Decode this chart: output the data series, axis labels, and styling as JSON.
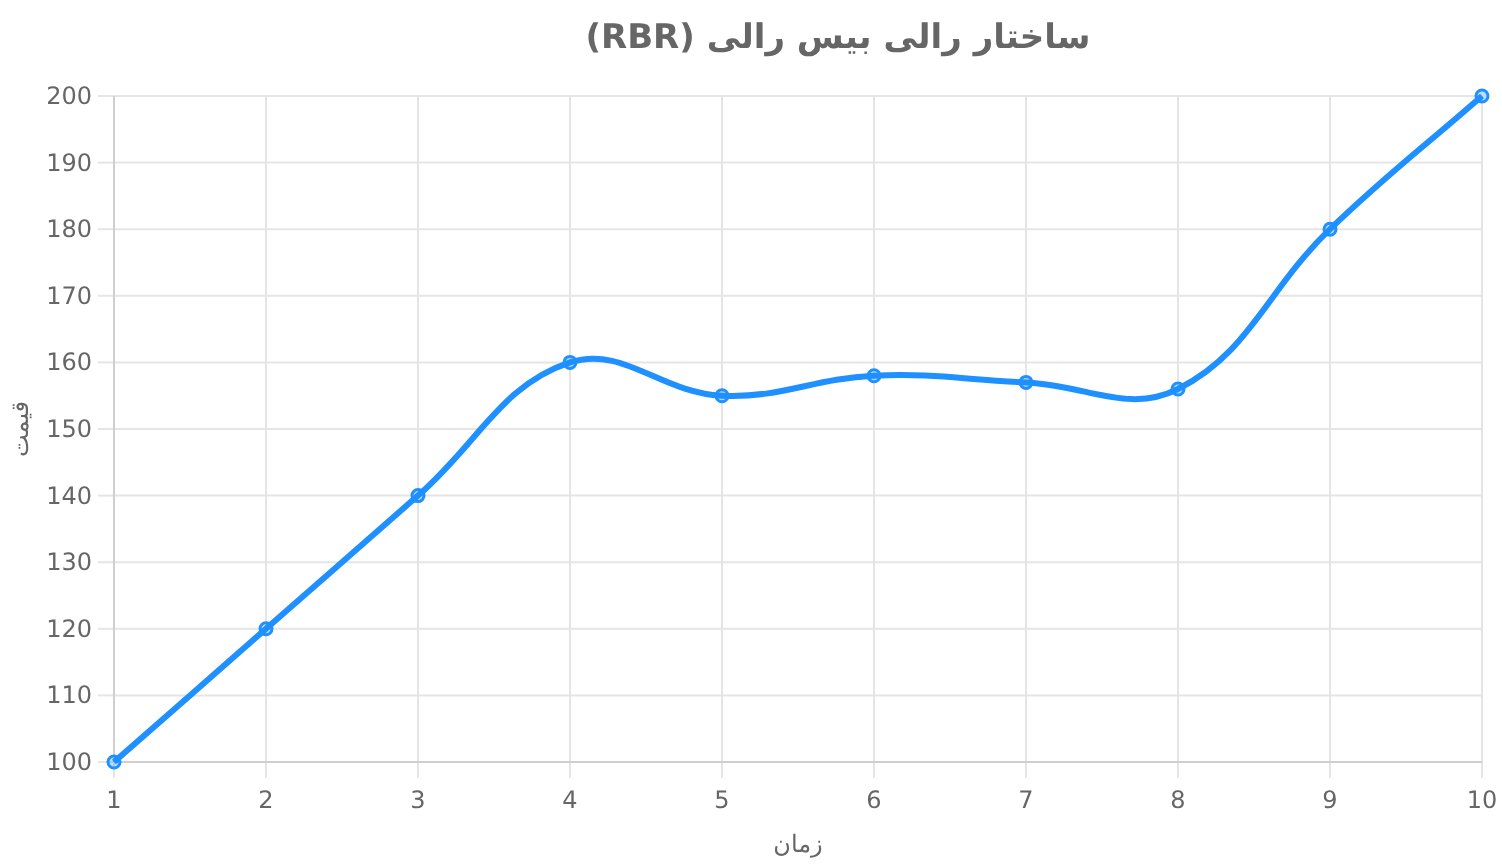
{
  "chart_data": {
    "type": "line",
    "title": "ساختار رالی بیس رالی (RBR)",
    "xlabel": "زمان",
    "ylabel": "قیمت",
    "categories": [
      "1",
      "2",
      "3",
      "4",
      "5",
      "6",
      "7",
      "8",
      "9",
      "10"
    ],
    "series": [
      {
        "color": "#1e90ff",
        "values": [
          100,
          120,
          140,
          160,
          155,
          158,
          157,
          156,
          180,
          200
        ]
      }
    ],
    "ylim": [
      100,
      200
    ],
    "yticks": [
      100,
      110,
      120,
      130,
      140,
      150,
      160,
      170,
      180,
      190,
      200
    ],
    "grid": true,
    "marker": "circle",
    "line_style": "solid"
  }
}
